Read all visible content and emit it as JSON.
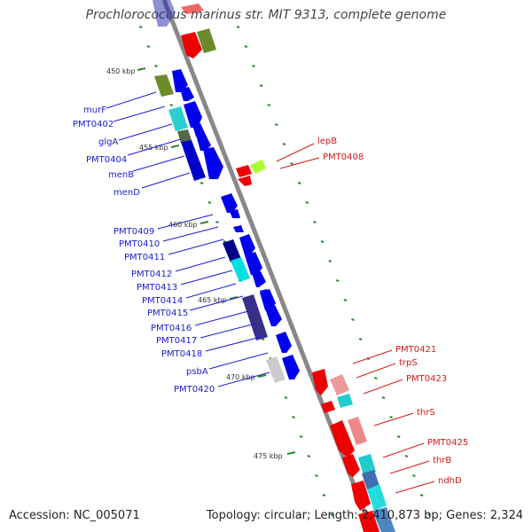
{
  "title": "Prochlorococcus marinus str. MIT 9313, complete genome",
  "footer": {
    "accession": "Accession: NC_005071",
    "topology": "Topology: circular; Length: 2,410,873 bp; Genes: 2,324"
  },
  "kbp_marks": [
    "450 kbp",
    "455 kbp",
    "460 kbp",
    "465 kbp",
    "470 kbp",
    "475 kbp"
  ],
  "genes_left": [
    "murF",
    "PMT0402",
    "glgA",
    "PMT0404",
    "menB",
    "menD",
    "PMT0409",
    "PMT0410",
    "PMT0411",
    "PMT0412",
    "PMT0413",
    "PMT0414",
    "PMT0415",
    "PMT0416",
    "PMT0417",
    "PMT0418",
    "psbA",
    "PMT0420"
  ],
  "genes_right": [
    "lepB",
    "PMT0408",
    "PMT0421",
    "trpS",
    "PMT0423",
    "thrS",
    "PMT0425",
    "thrB",
    "ndhD"
  ],
  "colors": {
    "forward": "#0000ee",
    "reverse": "#ee0000",
    "backbone": "#999999",
    "tick": "#2a8a2a",
    "blue_label": "#1a1ad6",
    "red_label": "#d61a1a"
  }
}
